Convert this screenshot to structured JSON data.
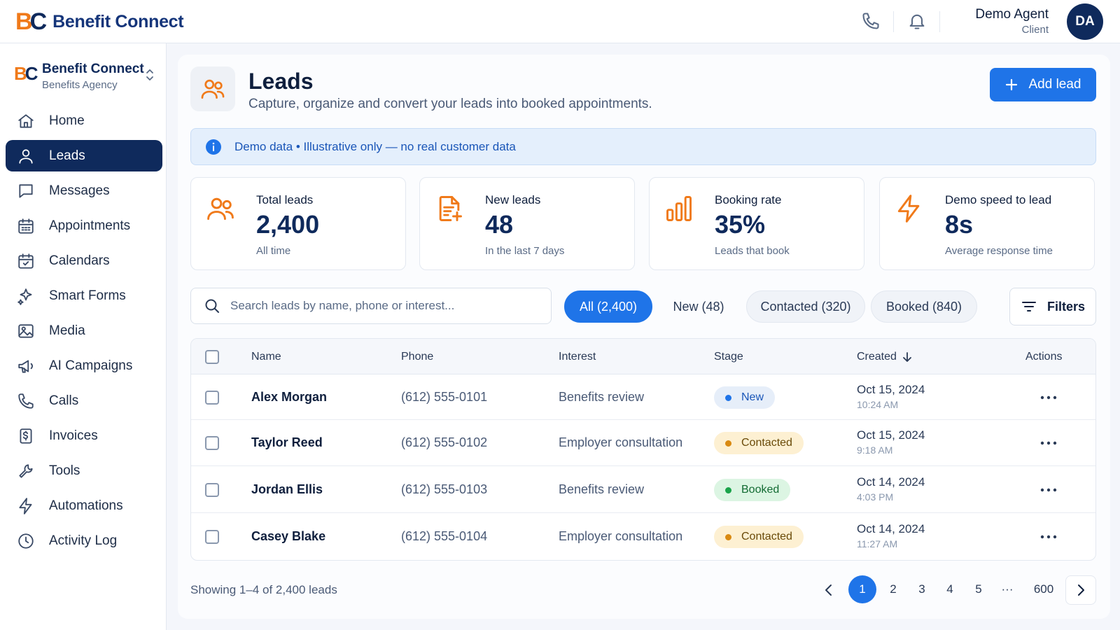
{
  "brand": {
    "logo_b": "B",
    "logo_c": "C",
    "name": "Benefit Connect"
  },
  "user": {
    "name": "Demo Agent",
    "role": "Client",
    "initials": "DA"
  },
  "org": {
    "name": "Benefit Connect",
    "sub": "Benefits Agency"
  },
  "sidebar": {
    "items": [
      {
        "label": "Home",
        "icon": "home-icon"
      },
      {
        "label": "Leads",
        "icon": "user-icon",
        "active": true
      },
      {
        "label": "Messages",
        "icon": "message-icon"
      },
      {
        "label": "Appointments",
        "icon": "calendar-grid-icon"
      },
      {
        "label": "Calendars",
        "icon": "calendar-check-icon"
      },
      {
        "label": "Smart Forms",
        "icon": "sparkle-icon"
      },
      {
        "label": "Media",
        "icon": "image-icon"
      },
      {
        "label": "AI Campaigns",
        "icon": "megaphone-icon"
      },
      {
        "label": "Calls",
        "icon": "phone-icon"
      },
      {
        "label": "Invoices",
        "icon": "invoice-icon"
      },
      {
        "label": "Tools",
        "icon": "wrench-icon"
      },
      {
        "label": "Automations",
        "icon": "bolt-icon"
      },
      {
        "label": "Activity Log",
        "icon": "clock-icon"
      }
    ]
  },
  "header": {
    "title": "Leads",
    "subtitle": "Capture, organize and convert your leads into booked appointments.",
    "add_label": "Add lead"
  },
  "banner": {
    "text": "Demo data • Illustrative only — no real customer data"
  },
  "stats": [
    {
      "label": "Total leads",
      "value": "2,400",
      "sub": "All time",
      "icon": "users-icon"
    },
    {
      "label": "New leads",
      "value": "48",
      "sub": "In the last 7 days",
      "icon": "document-plus-icon"
    },
    {
      "label": "Booking rate",
      "value": "35%",
      "sub": "Leads that book",
      "icon": "bar-chart-icon"
    },
    {
      "label": "Demo speed to lead",
      "value": "8s",
      "sub": "Average response time",
      "icon": "bolt-icon"
    }
  ],
  "search": {
    "placeholder": "Search leads by name, phone or interest..."
  },
  "chips": [
    {
      "label": "All (2,400)",
      "active": true
    },
    {
      "label": "New (48)"
    },
    {
      "label": "Contacted (320)"
    },
    {
      "label": "Booked (840)"
    }
  ],
  "filters_label": "Filters",
  "table": {
    "columns": [
      "Name",
      "Phone",
      "Interest",
      "Stage",
      "Created",
      "Actions"
    ],
    "rows": [
      {
        "name": "Alex Morgan",
        "phone": "(612) 555-0101",
        "interest": "Benefits review",
        "stage": "New",
        "date": "Oct 15, 2024",
        "time": "10:24 AM"
      },
      {
        "name": "Taylor Reed",
        "phone": "(612) 555-0102",
        "interest": "Employer consultation",
        "stage": "Contacted",
        "date": "Oct 15, 2024",
        "time": "9:18 AM"
      },
      {
        "name": "Jordan Ellis",
        "phone": "(612) 555-0103",
        "interest": "Benefits review",
        "stage": "Booked",
        "date": "Oct 14, 2024",
        "time": "4:03 PM"
      },
      {
        "name": "Casey Blake",
        "phone": "(612) 555-0104",
        "interest": "Employer consultation",
        "stage": "Contacted",
        "date": "Oct 14, 2024",
        "time": "11:27 AM"
      }
    ]
  },
  "stage_colors": {
    "New": {
      "bg": "#e6eef9",
      "dot": "#1f74e8",
      "text": "#1a56b8"
    },
    "Contacted": {
      "bg": "#fdf0d2",
      "dot": "#d98a12",
      "text": "#6a4a08"
    },
    "Booked": {
      "bg": "#dcf5e3",
      "dot": "#1aa34a",
      "text": "#136b33"
    }
  },
  "pagination": {
    "showing": "Showing 1–4 of 2,400 leads",
    "pages": [
      "1",
      "2",
      "3",
      "4",
      "5",
      "···",
      "600"
    ],
    "current": "1"
  },
  "colors": {
    "accent": "#1f74e8",
    "brand_orange": "#f07a1a",
    "navy": "#0f2a5c"
  }
}
